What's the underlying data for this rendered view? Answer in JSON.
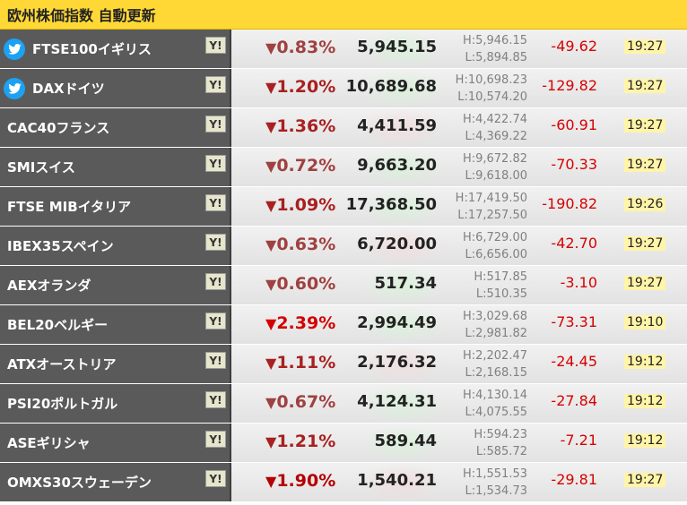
{
  "header": {
    "title": "欧州株価指数 自動更新"
  },
  "colors": {
    "header_bg": "#ffd836",
    "name_bg": "#5a5a5a",
    "down": "#d60000",
    "twitter": "#1da1f2",
    "time_bg": "#fff4a8"
  },
  "rows": [
    {
      "name": "FTSE100イギリス",
      "twitter": true,
      "yahoo": "Y!",
      "arrow": "▼",
      "pct": "0.83%",
      "value": "5,945.15",
      "high": "H:5,946.15",
      "low": "L:5,894.85",
      "change": "-49.62",
      "time": "19:27"
    },
    {
      "name": "DAXドイツ",
      "twitter": true,
      "yahoo": "Y!",
      "arrow": "▼",
      "pct": "1.20%",
      "value": "10,689.68",
      "high": "H:10,698.23",
      "low": "L:10,574.20",
      "change": "-129.82",
      "time": "19:27"
    },
    {
      "name": "CAC40フランス",
      "twitter": false,
      "yahoo": "Y!",
      "arrow": "▼",
      "pct": "1.36%",
      "value": "4,411.59",
      "high": "H:4,422.74",
      "low": "L:4,369.22",
      "change": "-60.91",
      "time": "19:27"
    },
    {
      "name": "SMIスイス",
      "twitter": false,
      "yahoo": "Y!",
      "arrow": "▼",
      "pct": "0.72%",
      "value": "9,663.20",
      "high": "H:9,672.82",
      "low": "L:9,618.00",
      "change": "-70.33",
      "time": "19:27"
    },
    {
      "name": "FTSE MIBイタリア",
      "twitter": false,
      "yahoo": "Y!",
      "arrow": "▼",
      "pct": "1.09%",
      "value": "17,368.50",
      "high": "H:17,419.50",
      "low": "L:17,257.50",
      "change": "-190.82",
      "time": "19:26"
    },
    {
      "name": "IBEX35スペイン",
      "twitter": false,
      "yahoo": "Y!",
      "arrow": "▼",
      "pct": "0.63%",
      "value": "6,720.00",
      "high": "H:6,729.00",
      "low": "L:6,656.00",
      "change": "-42.70",
      "time": "19:27"
    },
    {
      "name": "AEXオランダ",
      "twitter": false,
      "yahoo": "Y!",
      "arrow": "▼",
      "pct": "0.60%",
      "value": "517.34",
      "high": "H:517.85",
      "low": "L:510.35",
      "change": "-3.10",
      "time": "19:27"
    },
    {
      "name": "BEL20ベルギー",
      "twitter": false,
      "yahoo": "Y!",
      "arrow": "▼",
      "pct": "2.39%",
      "value": "2,994.49",
      "high": "H:3,029.68",
      "low": "L:2,981.82",
      "change": "-73.31",
      "time": "19:10"
    },
    {
      "name": "ATXオーストリア",
      "twitter": false,
      "yahoo": "Y!",
      "arrow": "▼",
      "pct": "1.11%",
      "value": "2,176.32",
      "high": "H:2,202.47",
      "low": "L:2,168.15",
      "change": "-24.45",
      "time": "19:12"
    },
    {
      "name": "PSI20ポルトガル",
      "twitter": false,
      "yahoo": "Y!",
      "arrow": "▼",
      "pct": "0.67%",
      "value": "4,124.31",
      "high": "H:4,130.14",
      "low": "L:4,075.55",
      "change": "-27.84",
      "time": "19:12"
    },
    {
      "name": "ASEギリシャ",
      "twitter": false,
      "yahoo": "Y!",
      "arrow": "▼",
      "pct": "1.21%",
      "value": "589.44",
      "high": "H:594.23",
      "low": "L:585.72",
      "change": "-7.21",
      "time": "19:12"
    },
    {
      "name": "OMXS30スウェーデン",
      "twitter": false,
      "yahoo": "Y!",
      "arrow": "▼",
      "pct": "1.90%",
      "value": "1,540.21",
      "high": "H:1,551.53",
      "low": "L:1,534.73",
      "change": "-29.81",
      "time": "19:27"
    }
  ]
}
